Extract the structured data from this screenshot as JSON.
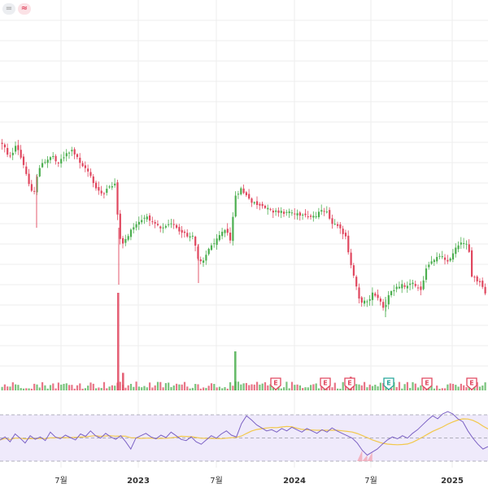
{
  "toolbar": {
    "badges": [
      {
        "name": "grey",
        "glyph": "="
      },
      {
        "name": "pink",
        "glyph": "≈"
      }
    ]
  },
  "colors": {
    "up": "#4caf50",
    "down": "#e0475f",
    "rsi_line": "#7b61c4",
    "rsi_ma": "#f2c84b",
    "rsi_band": "#efeafb",
    "earnings_red": "#e0475f",
    "earnings_teal": "#26a69a",
    "grid": "#eeeeee"
  },
  "chart_data": {
    "type": "candlestick",
    "x_ticks": [
      {
        "label": "7월",
        "year": false
      },
      {
        "label": "2023",
        "year": true
      },
      {
        "label": "7월",
        "year": false
      },
      {
        "label": "2024",
        "year": true
      },
      {
        "label": "7월",
        "year": false
      },
      {
        "label": "2025",
        "year": true
      }
    ],
    "earnings_markers": [
      {
        "label": "E",
        "color": "red"
      },
      {
        "label": "E",
        "color": "red"
      },
      {
        "label": "E",
        "color": "red"
      },
      {
        "label": "E",
        "color": "teal"
      },
      {
        "label": "E",
        "color": "red"
      },
      {
        "label": "E",
        "color": "red"
      }
    ],
    "price_path": [
      [
        0,
        175
      ],
      [
        8,
        180
      ],
      [
        14,
        195
      ],
      [
        22,
        178
      ],
      [
        30,
        200
      ],
      [
        38,
        225
      ],
      [
        44,
        240
      ],
      [
        50,
        205
      ],
      [
        58,
        200
      ],
      [
        66,
        190
      ],
      [
        74,
        200
      ],
      [
        84,
        188
      ],
      [
        92,
        185
      ],
      [
        100,
        198
      ],
      [
        110,
        210
      ],
      [
        120,
        232
      ],
      [
        130,
        238
      ],
      [
        140,
        228
      ],
      [
        145,
        225
      ],
      [
        148,
        290
      ],
      [
        152,
        300
      ],
      [
        158,
        292
      ],
      [
        168,
        278
      ],
      [
        180,
        268
      ],
      [
        190,
        270
      ],
      [
        200,
        280
      ],
      [
        212,
        272
      ],
      [
        222,
        285
      ],
      [
        232,
        290
      ],
      [
        240,
        292
      ],
      [
        246,
        318
      ],
      [
        252,
        320
      ],
      [
        260,
        305
      ],
      [
        270,
        290
      ],
      [
        280,
        282
      ],
      [
        286,
        300
      ],
      [
        290,
        245
      ],
      [
        298,
        232
      ],
      [
        308,
        245
      ],
      [
        320,
        252
      ],
      [
        332,
        258
      ],
      [
        345,
        262
      ],
      [
        358,
        260
      ],
      [
        370,
        265
      ],
      [
        382,
        268
      ],
      [
        395,
        262
      ],
      [
        402,
        258
      ],
      [
        410,
        275
      ],
      [
        420,
        282
      ],
      [
        428,
        290
      ],
      [
        432,
        320
      ],
      [
        438,
        345
      ],
      [
        445,
        370
      ],
      [
        452,
        372
      ],
      [
        460,
        362
      ],
      [
        468,
        368
      ],
      [
        475,
        382
      ],
      [
        482,
        358
      ],
      [
        492,
        350
      ],
      [
        500,
        352
      ],
      [
        510,
        348
      ],
      [
        520,
        356
      ],
      [
        526,
        330
      ],
      [
        532,
        322
      ],
      [
        540,
        314
      ],
      [
        548,
        318
      ],
      [
        556,
        320
      ],
      [
        562,
        306
      ],
      [
        570,
        300
      ],
      [
        578,
        298
      ],
      [
        582,
        340
      ],
      [
        590,
        345
      ],
      [
        596,
        355
      ],
      [
        600,
        362
      ]
    ],
    "volume_spikes": [
      {
        "x": 144,
        "value": 100,
        "color": "down"
      },
      {
        "x": 150,
        "value": 18,
        "color": "down"
      },
      {
        "x": 288,
        "value": 40,
        "color": "up"
      },
      {
        "x": 430,
        "value": 14,
        "color": "down"
      }
    ],
    "rsi": {
      "levels": [
        70,
        50,
        30
      ],
      "values": [
        45,
        50,
        42,
        55,
        48,
        40,
        52,
        46,
        50,
        44,
        58,
        50,
        47,
        53,
        49,
        45,
        55,
        51,
        60,
        52,
        48,
        56,
        50,
        46,
        52,
        42,
        30,
        48,
        52,
        56,
        50,
        47,
        53,
        49,
        58,
        52,
        46,
        44,
        50,
        42,
        38,
        45,
        52,
        48,
        55,
        60,
        53,
        50,
        72,
        85,
        78,
        70,
        65,
        60,
        62,
        58,
        64,
        60,
        66,
        62,
        58,
        64,
        60,
        56,
        62,
        58,
        65,
        60,
        56,
        52,
        48,
        40,
        28,
        20,
        25,
        30,
        38,
        45,
        50,
        47,
        52,
        48,
        56,
        62,
        70,
        78,
        85,
        80,
        88,
        92,
        88,
        80,
        75,
        60,
        48,
        38,
        30,
        34
      ]
    }
  }
}
